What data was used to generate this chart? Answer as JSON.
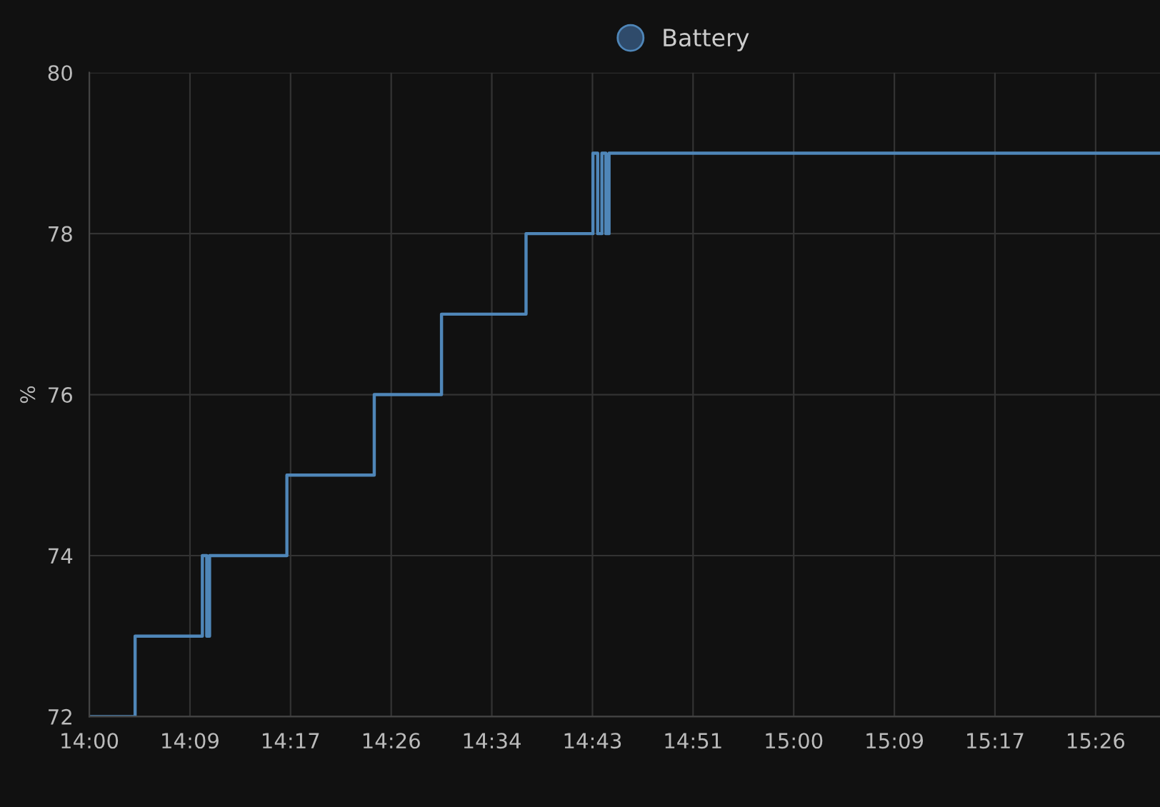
{
  "chart_data": {
    "type": "step",
    "ylabel": "%",
    "legend": "top",
    "grid": true,
    "x": [
      14.0,
      14.065,
      14.1605,
      14.1667,
      14.1707,
      14.2805,
      14.4045,
      14.5,
      14.62,
      14.715,
      14.7217,
      14.7277,
      14.7333,
      14.7378,
      15.52
    ],
    "series": [
      {
        "name": "Battery",
        "color": "#4f86b8",
        "values": [
          72,
          73,
          74,
          73,
          74,
          75,
          76,
          77,
          78,
          79,
          78,
          79,
          78,
          79,
          79
        ]
      }
    ],
    "xlim": [
      14.0,
      15.52
    ],
    "xticks": [
      {
        "value": 14.0,
        "label": "14:00"
      },
      {
        "value": 14.1429,
        "label": "14:09"
      },
      {
        "value": 14.2857,
        "label": "14:17"
      },
      {
        "value": 14.4286,
        "label": "14:26"
      },
      {
        "value": 14.5714,
        "label": "14:34"
      },
      {
        "value": 14.7143,
        "label": "14:43"
      },
      {
        "value": 14.8571,
        "label": "14:51"
      },
      {
        "value": 15.0,
        "label": "15:00"
      },
      {
        "value": 15.1429,
        "label": "15:09"
      },
      {
        "value": 15.2857,
        "label": "15:17"
      },
      {
        "value": 15.4286,
        "label": "15:26"
      }
    ],
    "ylim": [
      72,
      80
    ],
    "yticks": [
      72,
      74,
      76,
      78,
      80
    ]
  }
}
